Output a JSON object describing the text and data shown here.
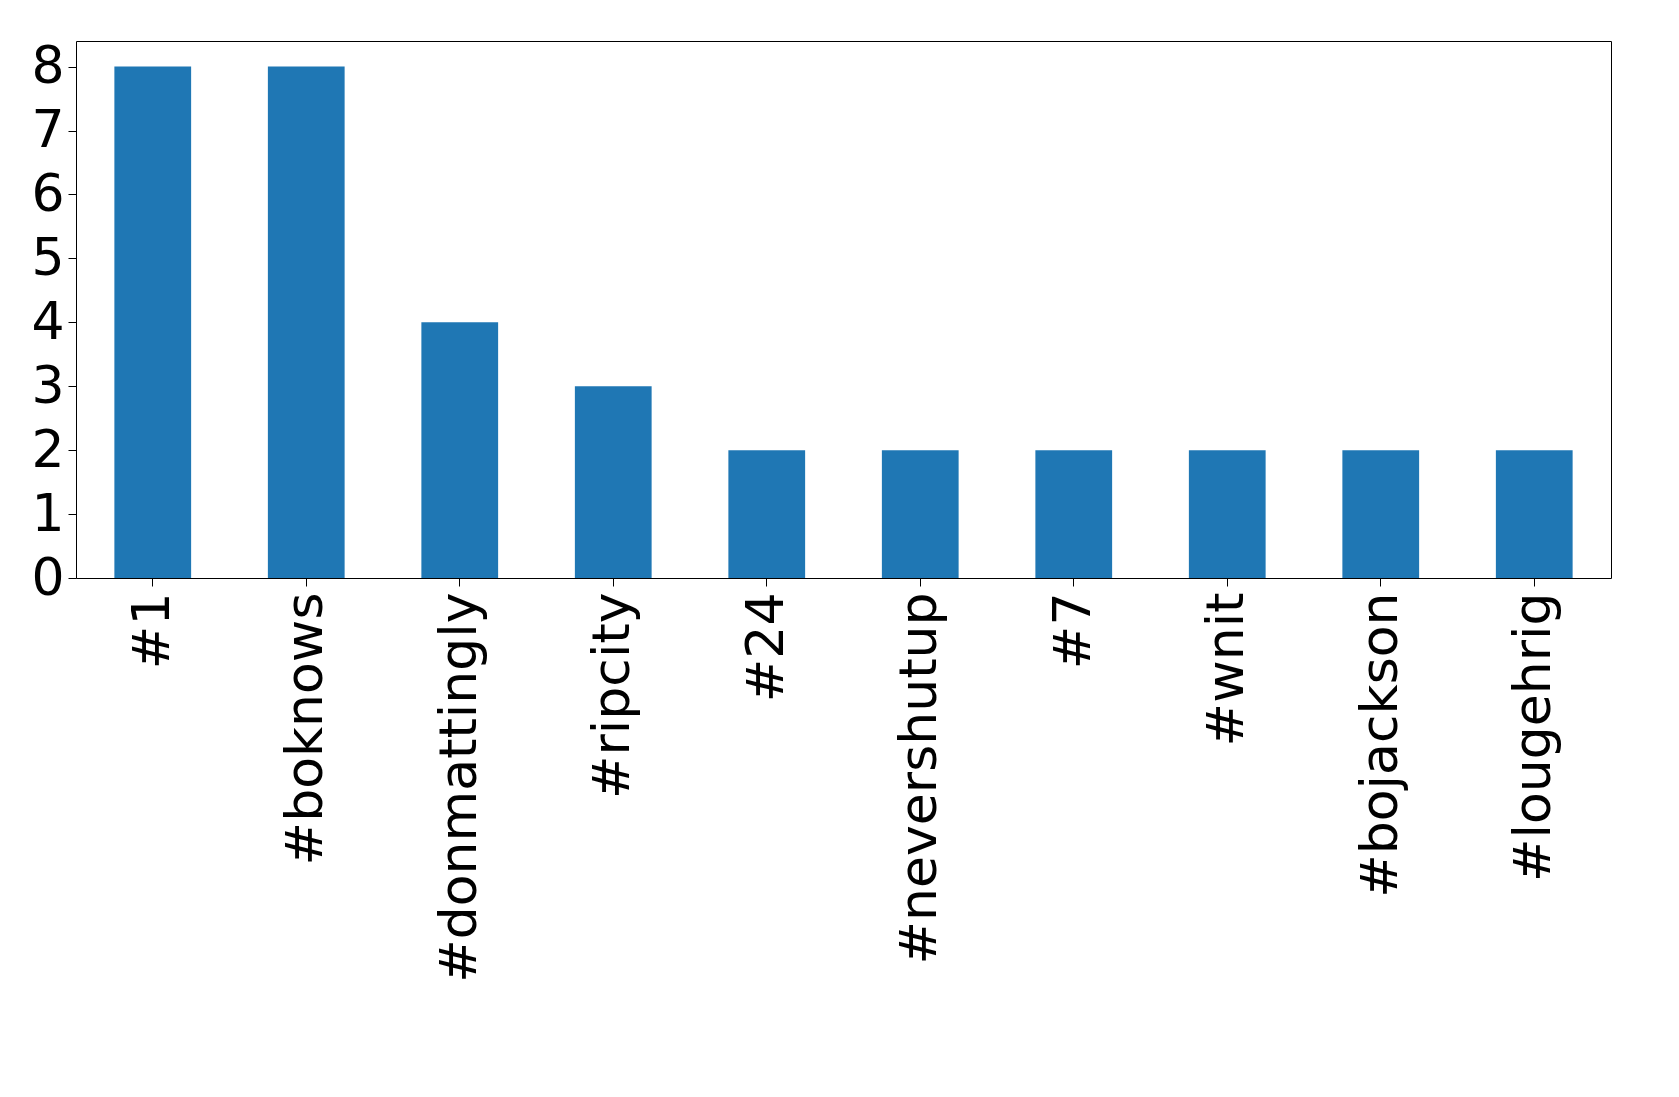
{
  "chart_data": {
    "type": "bar",
    "categories": [
      "#1",
      "#boknows",
      "#donmattingly",
      "#ripcity",
      "#24",
      "#nevershutup",
      "#7",
      "#wnit",
      "#bojackson",
      "#lougehrig"
    ],
    "values": [
      8,
      8,
      4,
      3,
      2,
      2,
      2,
      2,
      2,
      2
    ],
    "color": "#1f77b4",
    "ylim": [
      0,
      8.4
    ],
    "yticks": [
      0,
      1,
      2,
      3,
      4,
      5,
      6,
      7,
      8
    ],
    "grid": false
  }
}
